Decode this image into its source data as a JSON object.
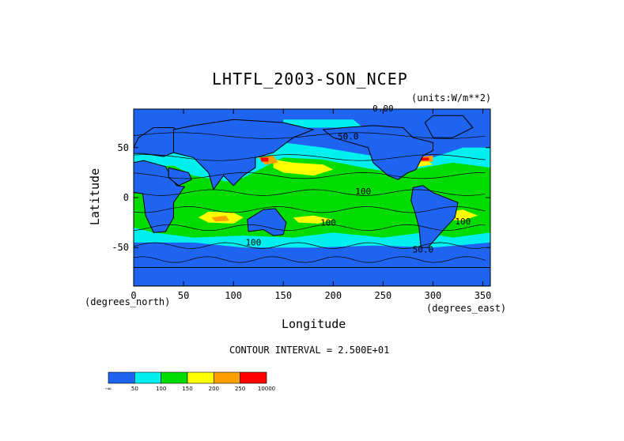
{
  "chart_data": {
    "type": "heatmap",
    "title": "LHTFL_2003-SON_NCEP",
    "units": "(units:W/m**2)",
    "xlabel": "Longitude",
    "ylabel": "Latitude",
    "x_unit_label": "(degrees_east)",
    "y_unit_label": "(degrees_north)",
    "xlim": [
      0,
      357.5
    ],
    "ylim": [
      -88.542,
      88.542
    ],
    "xticks": [
      "0",
      "50",
      "100",
      "150",
      "200",
      "250",
      "300",
      "350"
    ],
    "yticks": [
      "50",
      "0",
      "-50"
    ],
    "contour_interval_text": "CONTOUR INTERVAL = 2.500E+01",
    "contour_labels": [
      "0.00",
      "50.0",
      "100",
      "100",
      "100",
      "100",
      "50.0"
    ],
    "colorbar": {
      "bins": [
        {
          "range": "< 50",
          "color": "#1e64f0"
        },
        {
          "range": "50-100",
          "color": "#00f0f0"
        },
        {
          "range": "100-150",
          "color": "#00dc00"
        },
        {
          "range": "150-200",
          "color": "#ffff00"
        },
        {
          "range": "200-250",
          "color": "#ffa000"
        },
        {
          "range": ">= 250",
          "color": "#ff0000"
        }
      ],
      "labels": [
        "-∞",
        "50",
        "100",
        "150",
        "200",
        "250",
        "10000"
      ]
    }
  }
}
